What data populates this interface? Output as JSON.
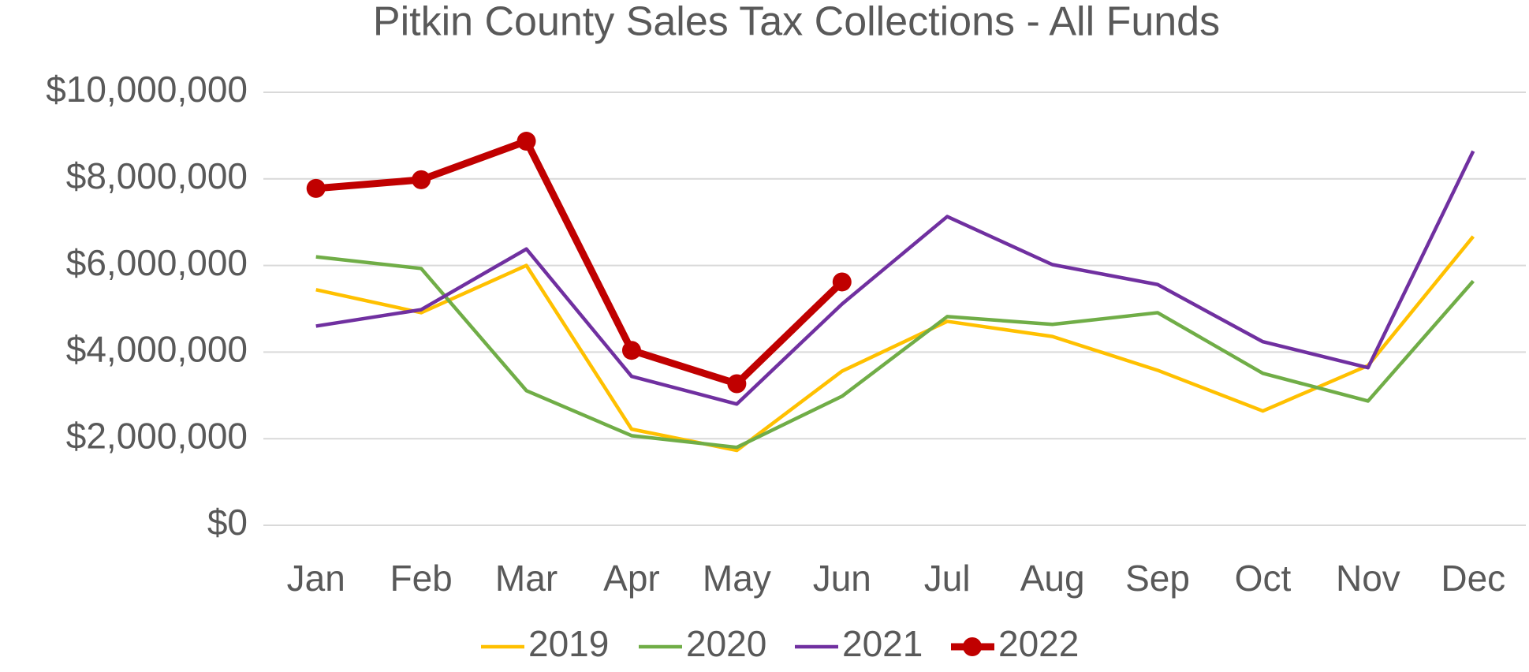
{
  "chart_data": {
    "type": "line",
    "title": "Pitkin County Sales Tax Collections - All Funds",
    "categories": [
      "Jan",
      "Feb",
      "Mar",
      "Apr",
      "May",
      "Jun",
      "Jul",
      "Aug",
      "Sep",
      "Oct",
      "Nov",
      "Dec"
    ],
    "series": [
      {
        "name": "2019",
        "color": "#ffc000",
        "values": [
          5440000,
          4910000,
          6000000,
          2220000,
          1730000,
          3560000,
          4710000,
          4360000,
          3580000,
          2640000,
          3690000,
          6670000
        ]
      },
      {
        "name": "2020",
        "color": "#70ad47",
        "values": [
          6200000,
          5930000,
          3110000,
          2070000,
          1800000,
          2980000,
          4820000,
          4640000,
          4910000,
          3510000,
          2870000,
          5640000
        ]
      },
      {
        "name": "2021",
        "color": "#7030a0",
        "values": [
          4600000,
          4980000,
          6380000,
          3440000,
          2800000,
          5110000,
          7130000,
          6020000,
          5560000,
          4240000,
          3640000,
          8640000
        ]
      },
      {
        "name": "2022",
        "color": "#c00000",
        "markers": true,
        "values": [
          7780000,
          7980000,
          8870000,
          4040000,
          3270000,
          5620000,
          null,
          null,
          null,
          null,
          null,
          null
        ]
      }
    ],
    "ylim": [
      0,
      10000000
    ],
    "yticks": [
      {
        "value": 0,
        "label": "$0"
      },
      {
        "value": 2000000,
        "label": "$2,000,000"
      },
      {
        "value": 4000000,
        "label": "$4,000,000"
      },
      {
        "value": 6000000,
        "label": "$6,000,000"
      },
      {
        "value": 8000000,
        "label": "$8,000,000"
      },
      {
        "value": 10000000,
        "label": "$10,000,000"
      }
    ],
    "grid": true,
    "legend": "bottom"
  }
}
